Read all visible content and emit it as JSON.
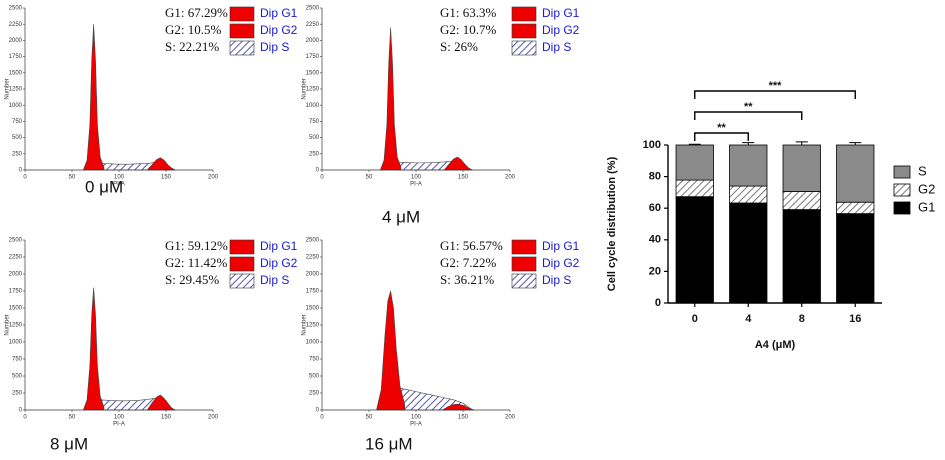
{
  "chart_data": [
    {
      "type": "area",
      "caption": "0 μM",
      "xlabel": "PI-A",
      "ylabel": "Number",
      "xlim": [
        0,
        200
      ],
      "xticks": [
        0,
        50,
        100,
        150,
        200
      ],
      "ylim": [
        0,
        2500
      ],
      "yticks": [
        0,
        250,
        500,
        750,
        1000,
        1250,
        1500,
        1750,
        2000,
        2250,
        2500
      ],
      "stats": [
        "G1: 67.29%",
        "G2: 10.5%",
        "S: 22.21%"
      ],
      "series": [
        {
          "name": "Dip G1",
          "color": "#ee0000",
          "x": [
            62,
            66,
            69,
            71,
            73,
            75,
            77,
            80,
            84
          ],
          "values": [
            0,
            150,
            700,
            1700,
            2250,
            1700,
            700,
            200,
            40
          ]
        },
        {
          "name": "Dip G2",
          "color": "#ee0000",
          "x": [
            130,
            135,
            140,
            144,
            148,
            152,
            156,
            160
          ],
          "values": [
            0,
            80,
            160,
            190,
            150,
            80,
            30,
            0
          ]
        },
        {
          "name": "Dip S",
          "color": "#2a2a9a",
          "hatch": true,
          "x": [
            80,
            90,
            100,
            110,
            120,
            130,
            140,
            150,
            156
          ],
          "values": [
            100,
            95,
            90,
            90,
            95,
            100,
            120,
            110,
            0
          ]
        }
      ]
    },
    {
      "type": "area",
      "caption": "4 μM",
      "xlabel": "PI-A",
      "ylabel": "Number",
      "xlim": [
        0,
        200
      ],
      "xticks": [
        0,
        50,
        100,
        150,
        200
      ],
      "ylim": [
        0,
        2500
      ],
      "yticks": [
        0,
        250,
        500,
        750,
        1000,
        1250,
        1500,
        1750,
        2000,
        2250,
        2500
      ],
      "stats": [
        "G1: 63.3%",
        "G2: 10.7%",
        "S: 26%"
      ],
      "series": [
        {
          "name": "Dip G1",
          "color": "#ee0000",
          "x": [
            62,
            66,
            69,
            71,
            73,
            75,
            77,
            80,
            84
          ],
          "values": [
            0,
            150,
            700,
            1650,
            2200,
            1650,
            700,
            200,
            40
          ]
        },
        {
          "name": "Dip G2",
          "color": "#ee0000",
          "x": [
            130,
            135,
            140,
            144,
            148,
            152,
            156,
            160
          ],
          "values": [
            0,
            90,
            170,
            200,
            160,
            90,
            30,
            0
          ]
        },
        {
          "name": "Dip S",
          "color": "#2a2a9a",
          "hatch": true,
          "x": [
            80,
            90,
            100,
            110,
            120,
            130,
            140,
            150,
            156
          ],
          "values": [
            120,
            115,
            110,
            110,
            115,
            125,
            140,
            120,
            0
          ]
        }
      ]
    },
    {
      "type": "area",
      "caption": "8 μM",
      "xlabel": "PI-A",
      "ylabel": "Number",
      "xlim": [
        0,
        200
      ],
      "xticks": [
        0,
        50,
        100,
        150,
        200
      ],
      "ylim": [
        0,
        2500
      ],
      "yticks": [
        0,
        250,
        500,
        750,
        1000,
        1250,
        1500,
        1750,
        2000,
        2250,
        2500
      ],
      "stats": [
        "G1: 59.12%",
        "G2: 11.42%",
        "S: 29.45%"
      ],
      "series": [
        {
          "name": "Dip G1",
          "color": "#ee0000",
          "x": [
            62,
            66,
            69,
            71,
            73,
            75,
            77,
            80,
            84
          ],
          "values": [
            0,
            150,
            650,
            1400,
            1800,
            1400,
            650,
            200,
            40
          ]
        },
        {
          "name": "Dip G2",
          "color": "#ee0000",
          "x": [
            130,
            135,
            140,
            144,
            148,
            152,
            156,
            160
          ],
          "values": [
            0,
            100,
            190,
            220,
            170,
            100,
            30,
            0
          ]
        },
        {
          "name": "Dip S",
          "color": "#2a2a9a",
          "hatch": true,
          "x": [
            80,
            90,
            100,
            110,
            120,
            130,
            140,
            150,
            156
          ],
          "values": [
            150,
            140,
            135,
            135,
            140,
            155,
            175,
            140,
            0
          ]
        }
      ]
    },
    {
      "type": "area",
      "caption": "16 μM",
      "xlabel": "PI-A",
      "ylabel": "Number",
      "xlim": [
        0,
        200
      ],
      "xticks": [
        0,
        50,
        100,
        150,
        200
      ],
      "ylim": [
        0,
        2500
      ],
      "yticks": [
        0,
        250,
        500,
        750,
        1000,
        1250,
        1500,
        1750,
        2000,
        2250,
        2500
      ],
      "stats": [
        "G1: 56.57%",
        "G2: 7.22%",
        "S: 36.21%"
      ],
      "series": [
        {
          "name": "Dip G1",
          "color": "#ee0000",
          "x": [
            58,
            63,
            67,
            70,
            73,
            76,
            79,
            83,
            88
          ],
          "values": [
            0,
            300,
            1100,
            1600,
            1750,
            1500,
            900,
            350,
            80
          ]
        },
        {
          "name": "Dip G2",
          "color": "#ee0000",
          "x": [
            128,
            134,
            140,
            145,
            150,
            156,
            162
          ],
          "values": [
            0,
            50,
            80,
            85,
            70,
            30,
            0
          ]
        },
        {
          "name": "Dip S",
          "color": "#2a2a9a",
          "hatch": true,
          "x": [
            80,
            90,
            100,
            110,
            120,
            130,
            140,
            150,
            160
          ],
          "values": [
            330,
            300,
            270,
            240,
            210,
            180,
            150,
            100,
            0
          ]
        }
      ]
    },
    {
      "type": "stacked-bar",
      "xlabel": "A4 (μM)",
      "ylabel": "Cell cycle distribution (%)",
      "categories": [
        "0",
        "4",
        "8",
        "16"
      ],
      "ylim": [
        0,
        100
      ],
      "yticks": [
        0,
        20,
        40,
        60,
        80,
        100
      ],
      "legend": "right",
      "series": [
        {
          "name": "G1",
          "color": "#000000",
          "values": [
            67.29,
            63.3,
            59.12,
            56.57
          ]
        },
        {
          "name": "G2",
          "color": "#555555",
          "hatch": true,
          "values": [
            10.5,
            10.7,
            11.42,
            7.22
          ],
          "errors": [
            1,
            1,
            1,
            0.8
          ]
        },
        {
          "name": "S",
          "color": "#8a8a8a",
          "values": [
            22.21,
            26,
            29.45,
            36.21
          ],
          "errors": [
            0.5,
            1.5,
            2,
            1.5
          ]
        }
      ],
      "significance": [
        {
          "pair": [
            "0",
            "4"
          ],
          "label": "**"
        },
        {
          "pair": [
            "0",
            "8"
          ],
          "label": "**"
        },
        {
          "pair": [
            "0",
            "16"
          ],
          "label": "***"
        }
      ]
    }
  ]
}
